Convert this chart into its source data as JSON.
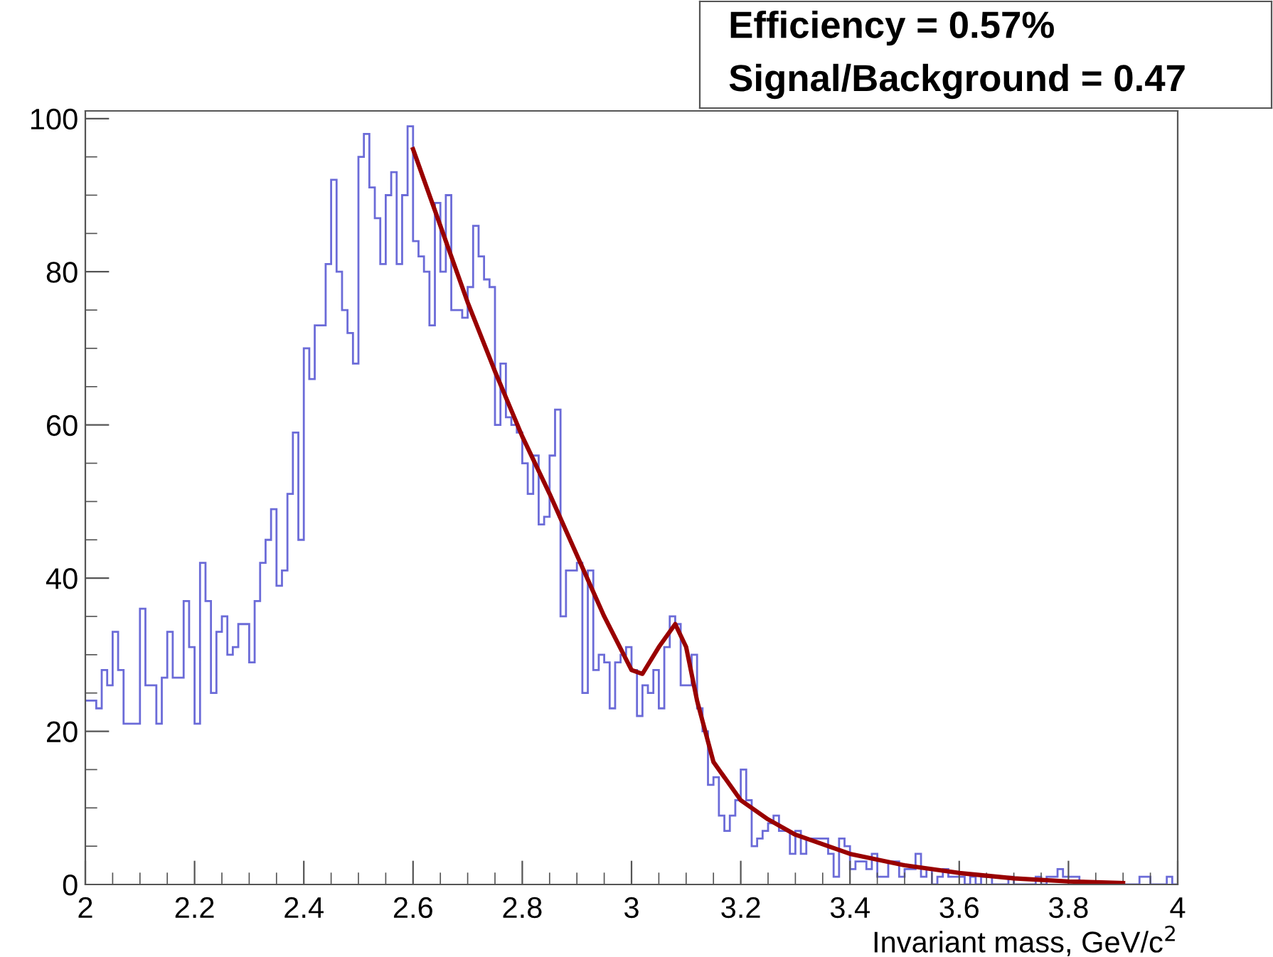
{
  "chart_data": {
    "type": "histogram",
    "xlabel": "Invariant mass, GeV/c$^{2}$",
    "annotations": [
      "Efficiency = 0.57%",
      "Signal/Background = 0.47"
    ],
    "bins": [
      2.0,
      2.01,
      2.02,
      2.03,
      2.04,
      2.05,
      2.06,
      2.07,
      2.08,
      2.09,
      2.1,
      2.11,
      2.12,
      2.13,
      2.14,
      2.15,
      2.16,
      2.17,
      2.18,
      2.19,
      2.2,
      2.21,
      2.22,
      2.23,
      2.24,
      2.25,
      2.26,
      2.27,
      2.28,
      2.29,
      2.3,
      2.31,
      2.32,
      2.33,
      2.34,
      2.35,
      2.36,
      2.37,
      2.38,
      2.39,
      2.4,
      2.41,
      2.42,
      2.43,
      2.44,
      2.45,
      2.46,
      2.47,
      2.48,
      2.49,
      2.5,
      2.51,
      2.52,
      2.53,
      2.54,
      2.55,
      2.56,
      2.57,
      2.58,
      2.59,
      2.6,
      2.61,
      2.62,
      2.63,
      2.64,
      2.65,
      2.66,
      2.67,
      2.68,
      2.69,
      2.7,
      2.71,
      2.72,
      2.73,
      2.74,
      2.75,
      2.76,
      2.77,
      2.78,
      2.79,
      2.8,
      2.81,
      2.82,
      2.83,
      2.84,
      2.85,
      2.86,
      2.87,
      2.88,
      2.89,
      2.9,
      2.91,
      2.92,
      2.93,
      2.94,
      2.95,
      2.96,
      2.97,
      2.98,
      2.99,
      3.0,
      3.01,
      3.02,
      3.03,
      3.04,
      3.05,
      3.06,
      3.07,
      3.08,
      3.09,
      3.1,
      3.11,
      3.12,
      3.13,
      3.14,
      3.15,
      3.16,
      3.17,
      3.18,
      3.19,
      3.2,
      3.21,
      3.22,
      3.23,
      3.24,
      3.25,
      3.26,
      3.27,
      3.28,
      3.29,
      3.3,
      3.31,
      3.32,
      3.33,
      3.34,
      3.35,
      3.36,
      3.37,
      3.38,
      3.39,
      3.4,
      3.41,
      3.42,
      3.43,
      3.44,
      3.45,
      3.46,
      3.47,
      3.48,
      3.49,
      3.5,
      3.51,
      3.52,
      3.53,
      3.54,
      3.55,
      3.56,
      3.57,
      3.58,
      3.59,
      3.6,
      3.61,
      3.62,
      3.63,
      3.64,
      3.65,
      3.66,
      3.67,
      3.68,
      3.69,
      3.7,
      3.71,
      3.72,
      3.73,
      3.74,
      3.75,
      3.76,
      3.77,
      3.78,
      3.79,
      3.8,
      3.81,
      3.82,
      3.83,
      3.84,
      3.85,
      3.86,
      3.87,
      3.88,
      3.89,
      3.9,
      3.91,
      3.92,
      3.93,
      3.94,
      3.95,
      3.96,
      3.97,
      3.98,
      3.99,
      4.0
    ],
    "series": [
      {
        "color": "#6b6bd8",
        "values": [
          24,
          24,
          23,
          28,
          26,
          33,
          28,
          21,
          21,
          21,
          36,
          26,
          26,
          21,
          27,
          33,
          27,
          27,
          37,
          31,
          21,
          42,
          37,
          25,
          33,
          35,
          30,
          31,
          34,
          34,
          29,
          37,
          42,
          45,
          49,
          39,
          41,
          51,
          59,
          45,
          70,
          66,
          73,
          73,
          81,
          92,
          80,
          75,
          72,
          68,
          95,
          98,
          91,
          87,
          81,
          90,
          93,
          81,
          90,
          99,
          84,
          82,
          80,
          73,
          89,
          80,
          90,
          75,
          75,
          74,
          78,
          86,
          82,
          79,
          78,
          60,
          68,
          61,
          60,
          59,
          55,
          51,
          56,
          47,
          48,
          56,
          62,
          35,
          41,
          41,
          42,
          25,
          41,
          28,
          30,
          29,
          23,
          29,
          30,
          31,
          28,
          22,
          26,
          25,
          28,
          23,
          31,
          35,
          34,
          26,
          26,
          30,
          23,
          20,
          13,
          14,
          9,
          7,
          9,
          11,
          15,
          11,
          5,
          6,
          7,
          8,
          9,
          7,
          7,
          4,
          7,
          4,
          6,
          6,
          6,
          6,
          4,
          1,
          6,
          5,
          2,
          3,
          3,
          2,
          4,
          1,
          1,
          3,
          3,
          1,
          2,
          2,
          4,
          1,
          2,
          0,
          1,
          2,
          1,
          1,
          1,
          0,
          1,
          0,
          1,
          1,
          0,
          0,
          0,
          1,
          0,
          0,
          0,
          0,
          1,
          0,
          1,
          1,
          2,
          1,
          1,
          1,
          0,
          0,
          0,
          0,
          0,
          0,
          0,
          0,
          0,
          0,
          0,
          1,
          1,
          0,
          0,
          0,
          1,
          0
        ]
      },
      {
        "type": "line",
        "color": "#990000",
        "x": [
          2.6,
          2.65,
          2.7,
          2.75,
          2.8,
          2.85,
          2.9,
          2.95,
          3.0,
          3.02,
          3.05,
          3.08,
          3.1,
          3.12,
          3.15,
          3.2,
          3.25,
          3.3,
          3.4,
          3.5,
          3.6,
          3.7,
          3.8,
          3.9
        ],
        "values": [
          96,
          86,
          76,
          67,
          58.5,
          51,
          43,
          35,
          28,
          27.5,
          31,
          34,
          31,
          24,
          16,
          11,
          8.5,
          6.5,
          4,
          2.5,
          1.5,
          0.8,
          0.4,
          0.2
        ]
      }
    ],
    "xlim": [
      2,
      4
    ],
    "ylim": [
      0,
      101
    ],
    "xticks": [
      2,
      2.2,
      2.4,
      2.6,
      2.8,
      3,
      3.2,
      3.4,
      3.6,
      3.8,
      4
    ],
    "yticks": [
      0,
      20,
      40,
      60,
      80,
      100
    ],
    "grid": false,
    "legend": false
  }
}
